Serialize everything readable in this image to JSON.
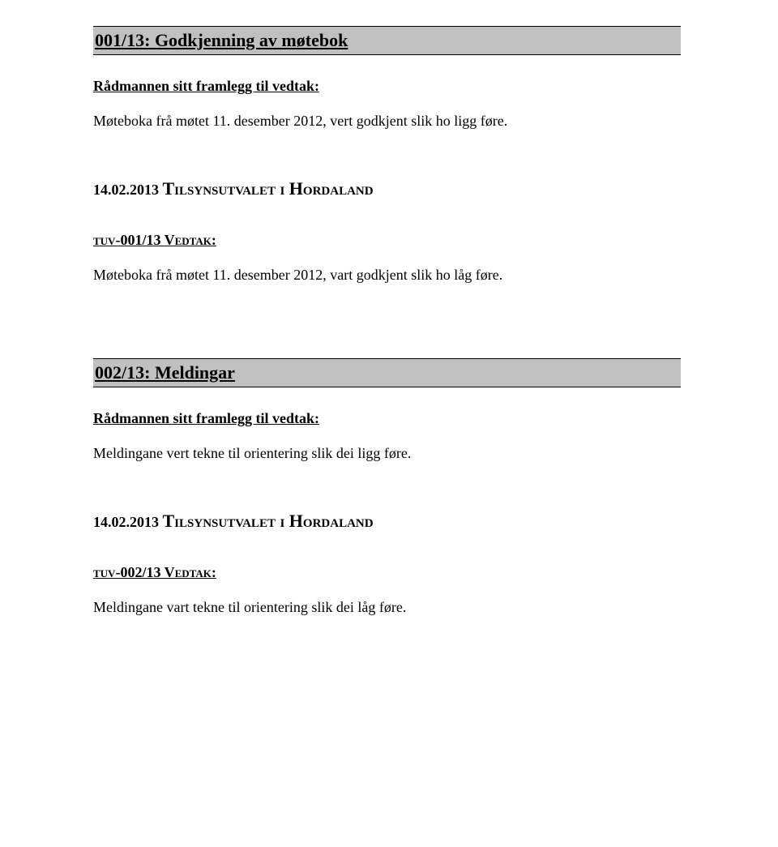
{
  "section1": {
    "heading": "001/13: Godkjenning av møtebok",
    "subhead": "Rådmannen sitt framlegg til vedtak:",
    "proposal": "Møteboka frå møtet 11. desember 2012, vert godkjent slik ho ligg føre.",
    "date": "14.02.2013 ",
    "org": "Tilsynsutvalet i Hordaland",
    "vedtak_label": "tuv-001/13 Vedtak:",
    "vedtak_text": "Møteboka frå møtet 11. desember 2012, vart godkjent slik ho låg føre."
  },
  "section2": {
    "heading": "002/13: Meldingar",
    "subhead": "Rådmannen sitt framlegg til vedtak:",
    "proposal": "Meldingane vert tekne til orientering slik dei ligg føre.",
    "date": "14.02.2013 ",
    "org": "Tilsynsutvalet i Hordaland",
    "vedtak_label": "tuv-002/13 Vedtak:",
    "vedtak_text": "Meldingane vart tekne til orientering slik dei låg føre."
  }
}
